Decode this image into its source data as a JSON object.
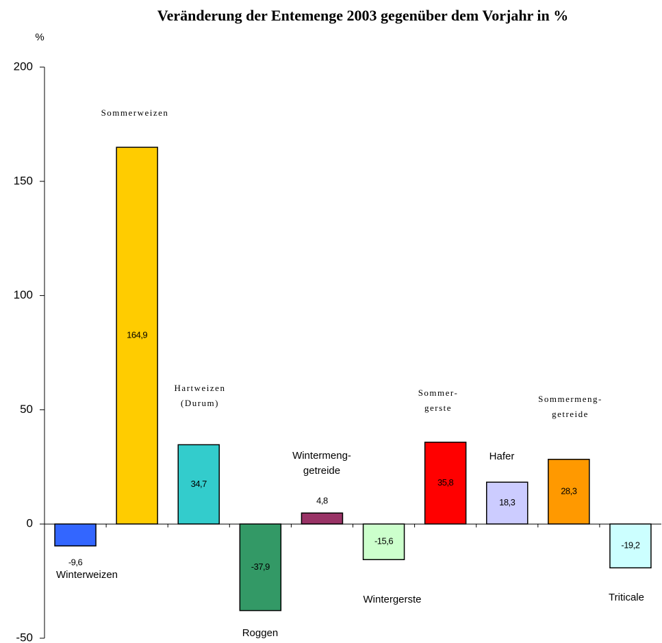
{
  "chart_data": {
    "type": "bar",
    "title": "Veränderung der Entemenge 2003 gegenüber dem Vorjahr in %",
    "y_label": "%",
    "categories": [
      "Winterweizen",
      "Sommerweizen",
      "Hartweizen\n(Durum)",
      "Roggen",
      "Wintermeng-\ngetreide",
      "Wintergerste",
      "Sommer-\ngerste",
      "Hafer",
      "Sommermeng-\ngetreide",
      "Triticale"
    ],
    "values": [
      -9.6,
      164.9,
      34.7,
      -37.9,
      4.8,
      -15.6,
      35.8,
      18.3,
      28.3,
      -19.2
    ],
    "value_labels": [
      "-9,6",
      "164,9",
      "34,7",
      "-37,9",
      "4,8",
      "-15,6",
      "35,8",
      "18,3",
      "28,3",
      "-19,2"
    ],
    "colors": [
      "#3366ff",
      "#ffcc00",
      "#33cccc",
      "#339966",
      "#993366",
      "#ccffcc",
      "#ff0000",
      "#ccccff",
      "#ff9900",
      "#ccffff"
    ],
    "ylim": [
      -50,
      200
    ],
    "yticks": [
      -50,
      0,
      50,
      100,
      150,
      200
    ],
    "grid": false
  }
}
